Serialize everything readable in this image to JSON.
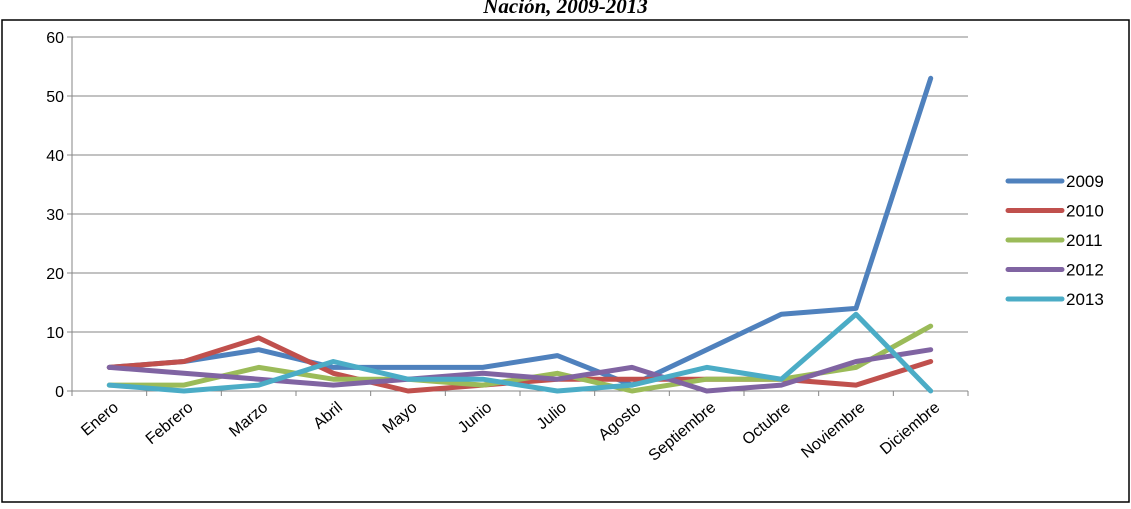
{
  "chart_data": {
    "type": "line",
    "title": "Nación, 2009-2013",
    "xlabel": "",
    "ylabel": "",
    "ylim": [
      0,
      60
    ],
    "yticks": [
      "0",
      "10",
      "20",
      "30",
      "40",
      "50",
      "60"
    ],
    "grid": "horizontal",
    "legend_position": "right",
    "categories": [
      "Enero",
      "Febrero",
      "Marzo",
      "Abril",
      "Mayo",
      "Junio",
      "Julio",
      "Agosto",
      "Septiembre",
      "Octubre",
      "Noviembre",
      "Diciembre"
    ],
    "series": [
      {
        "name": "2009",
        "color": "#4f81bd",
        "values": [
          4,
          5,
          7,
          4,
          4,
          4,
          6,
          1,
          7,
          13,
          14,
          53
        ]
      },
      {
        "name": "2010",
        "color": "#c0504d",
        "values": [
          4,
          5,
          9,
          3,
          0,
          1,
          2,
          2,
          2,
          2,
          1,
          5
        ]
      },
      {
        "name": "2011",
        "color": "#9bbb59",
        "values": [
          1,
          1,
          4,
          2,
          2,
          1,
          3,
          0,
          2,
          2,
          4,
          11
        ]
      },
      {
        "name": "2012",
        "color": "#8064a2",
        "values": [
          4,
          3,
          2,
          1,
          2,
          3,
          2,
          4,
          0,
          1,
          5,
          7
        ]
      },
      {
        "name": "2013",
        "color": "#4bacc6",
        "values": [
          1,
          0,
          1,
          5,
          2,
          2,
          0,
          1,
          4,
          2,
          13,
          0
        ]
      }
    ]
  }
}
